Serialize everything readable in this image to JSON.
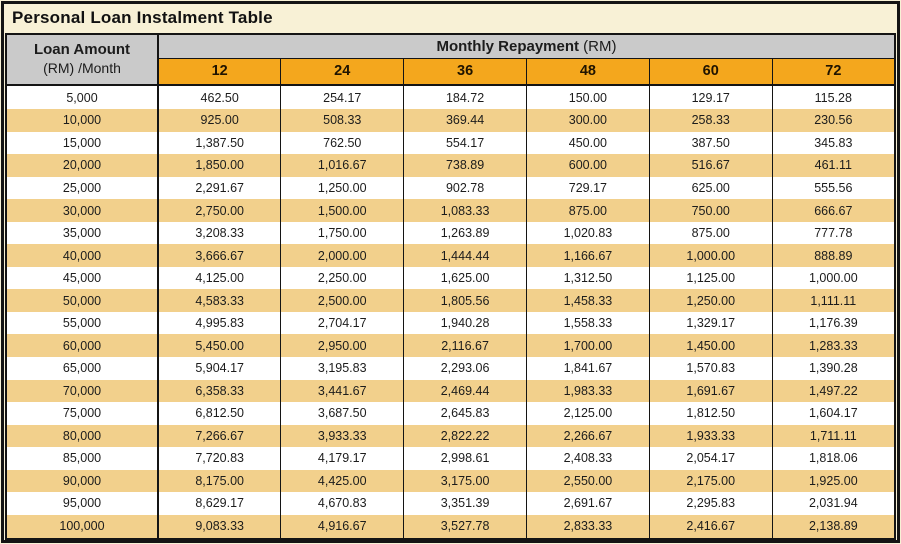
{
  "title": "Personal Loan Instalment Table",
  "table": {
    "loan_header_line1": "Loan Amount",
    "loan_header_line2": "(RM) /Month",
    "monthly_header_bold": "Monthly Repayment",
    "monthly_header_unit": "(RM)",
    "months": [
      "12",
      "24",
      "36",
      "48",
      "60",
      "72"
    ],
    "rows": [
      {
        "amount": "5,000",
        "values": [
          "462.50",
          "254.17",
          "184.72",
          "150.00",
          "129.17",
          "115.28"
        ]
      },
      {
        "amount": "10,000",
        "values": [
          "925.00",
          "508.33",
          "369.44",
          "300.00",
          "258.33",
          "230.56"
        ]
      },
      {
        "amount": "15,000",
        "values": [
          "1,387.50",
          "762.50",
          "554.17",
          "450.00",
          "387.50",
          "345.83"
        ]
      },
      {
        "amount": "20,000",
        "values": [
          "1,850.00",
          "1,016.67",
          "738.89",
          "600.00",
          "516.67",
          "461.11"
        ]
      },
      {
        "amount": "25,000",
        "values": [
          "2,291.67",
          "1,250.00",
          "902.78",
          "729.17",
          "625.00",
          "555.56"
        ]
      },
      {
        "amount": "30,000",
        "values": [
          "2,750.00",
          "1,500.00",
          "1,083.33",
          "875.00",
          "750.00",
          "666.67"
        ]
      },
      {
        "amount": "35,000",
        "values": [
          "3,208.33",
          "1,750.00",
          "1,263.89",
          "1,020.83",
          "875.00",
          "777.78"
        ]
      },
      {
        "amount": "40,000",
        "values": [
          "3,666.67",
          "2,000.00",
          "1,444.44",
          "1,166.67",
          "1,000.00",
          "888.89"
        ]
      },
      {
        "amount": "45,000",
        "values": [
          "4,125.00",
          "2,250.00",
          "1,625.00",
          "1,312.50",
          "1,125.00",
          "1,000.00"
        ]
      },
      {
        "amount": "50,000",
        "values": [
          "4,583.33",
          "2,500.00",
          "1,805.56",
          "1,458.33",
          "1,250.00",
          "1,111.11"
        ]
      },
      {
        "amount": "55,000",
        "values": [
          "4,995.83",
          "2,704.17",
          "1,940.28",
          "1,558.33",
          "1,329.17",
          "1,176.39"
        ]
      },
      {
        "amount": "60,000",
        "values": [
          "5,450.00",
          "2,950.00",
          "2,116.67",
          "1,700.00",
          "1,450.00",
          "1,283.33"
        ]
      },
      {
        "amount": "65,000",
        "values": [
          "5,904.17",
          "3,195.83",
          "2,293.06",
          "1,841.67",
          "1,570.83",
          "1,390.28"
        ]
      },
      {
        "amount": "70,000",
        "values": [
          "6,358.33",
          "3,441.67",
          "2,469.44",
          "1,983.33",
          "1,691.67",
          "1,497.22"
        ]
      },
      {
        "amount": "75,000",
        "values": [
          "6,812.50",
          "3,687.50",
          "2,645.83",
          "2,125.00",
          "1,812.50",
          "1,604.17"
        ]
      },
      {
        "amount": "80,000",
        "values": [
          "7,266.67",
          "3,933.33",
          "2,822.22",
          "2,266.67",
          "1,933.33",
          "1,711.11"
        ]
      },
      {
        "amount": "85,000",
        "values": [
          "7,720.83",
          "4,179.17",
          "2,998.61",
          "2,408.33",
          "2,054.17",
          "1,818.06"
        ]
      },
      {
        "amount": "90,000",
        "values": [
          "8,175.00",
          "4,425.00",
          "3,175.00",
          "2,550.00",
          "2,175.00",
          "1,925.00"
        ]
      },
      {
        "amount": "95,000",
        "values": [
          "8,629.17",
          "4,670.83",
          "3,351.39",
          "2,691.67",
          "2,295.83",
          "2,031.94"
        ]
      },
      {
        "amount": "100,000",
        "values": [
          "9,083.33",
          "4,916.67",
          "3,527.78",
          "2,833.33",
          "2,416.67",
          "2,138.89"
        ]
      }
    ],
    "colors": {
      "background_cream": "#f8f1d6",
      "header_grey": "#cacaca",
      "month_amber": "#f4a71d",
      "row_tan": "#f2d08c",
      "row_white": "#ffffff",
      "border_black": "#141414",
      "text": "#1c1c1c"
    }
  }
}
